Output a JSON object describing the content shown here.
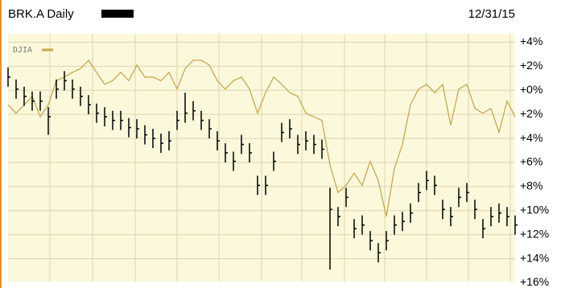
{
  "chart_data": {
    "type": "ohlc",
    "title": "BRK.A Daily",
    "date": "12/31/15",
    "ylim": [
      4.7,
      -15.9
    ],
    "yticks": [
      {
        "value": 4,
        "label": "+4%"
      },
      {
        "value": 2,
        "label": "+2%"
      },
      {
        "value": 0,
        "label": "+0%"
      },
      {
        "value": -2,
        "label": "+2%"
      },
      {
        "value": -4,
        "label": "+4%"
      },
      {
        "value": -6,
        "label": "+6%"
      },
      {
        "value": -8,
        "label": "+8%"
      },
      {
        "value": -10,
        "label": "+10%"
      },
      {
        "value": -12,
        "label": "+12%"
      },
      {
        "value": -14,
        "label": "+14%"
      },
      {
        "value": -16,
        "label": "+16%"
      }
    ],
    "grid": true,
    "bars": {
      "color": "#000000",
      "high": [
        1.9,
        0.9,
        0.3,
        -0.1,
        -0.1,
        -1.4,
        0.9,
        1.6,
        0.9,
        0.3,
        -0.4,
        -1.1,
        -1.4,
        -1.7,
        -1.7,
        -2.3,
        -2.4,
        -2.9,
        -3.2,
        -3.6,
        -3.4,
        -1.7,
        -0.2,
        -0.9,
        -1.7,
        -2.4,
        -3.4,
        -4.4,
        -5.1,
        -3.7,
        -4.4,
        -7.1,
        -7.1,
        -5.1,
        -2.7,
        -2.4,
        -3.7,
        -3.4,
        -3.7,
        -4.1,
        -8.1,
        -9.7,
        -8.1,
        -10.7,
        -10.4,
        -11.7,
        -12.7,
        -11.7,
        -10.4,
        -10.1,
        -9.4,
        -7.7,
        -6.7,
        -7.1,
        -9.1,
        -9.7,
        -8.1,
        -7.7,
        -9.1,
        -10.7,
        -9.7,
        -9.4,
        -9.7,
        -10.4
      ],
      "low": [
        0.3,
        -0.7,
        -1.3,
        -1.7,
        -1.7,
        -3.7,
        -0.7,
        0.0,
        -0.7,
        -1.3,
        -2.0,
        -2.7,
        -3.0,
        -3.3,
        -3.3,
        -3.9,
        -4.0,
        -4.5,
        -4.8,
        -5.2,
        -5.0,
        -3.3,
        -2.7,
        -2.5,
        -3.3,
        -4.0,
        -5.0,
        -6.0,
        -6.7,
        -5.3,
        -6.0,
        -8.7,
        -8.7,
        -6.7,
        -4.3,
        -4.0,
        -5.3,
        -5.0,
        -5.3,
        -5.7,
        -14.9,
        -11.3,
        -9.7,
        -12.3,
        -12.0,
        -13.3,
        -14.3,
        -13.3,
        -12.0,
        -11.7,
        -11.0,
        -9.3,
        -8.3,
        -8.7,
        -10.7,
        -11.3,
        -9.7,
        -9.3,
        -10.7,
        -12.3,
        -11.3,
        -11.0,
        -11.3,
        -12.0
      ],
      "close": [
        1.1,
        0.1,
        -0.5,
        -0.9,
        -0.9,
        -2.2,
        0.1,
        0.8,
        0.1,
        -0.5,
        -1.2,
        -1.9,
        -2.2,
        -2.5,
        -2.5,
        -3.1,
        -3.2,
        -3.7,
        -4.0,
        -4.4,
        -4.2,
        -2.5,
        -1.9,
        -1.7,
        -2.5,
        -3.2,
        -4.2,
        -5.2,
        -5.9,
        -4.5,
        -5.2,
        -7.9,
        -7.9,
        -5.9,
        -3.5,
        -3.2,
        -4.5,
        -4.2,
        -4.5,
        -4.9,
        -9.9,
        -10.5,
        -8.9,
        -11.5,
        -11.2,
        -12.5,
        -13.5,
        -12.5,
        -11.2,
        -10.9,
        -10.2,
        -8.5,
        -7.5,
        -7.9,
        -9.9,
        -10.5,
        -8.9,
        -8.5,
        -9.9,
        -11.5,
        -10.5,
        -10.2,
        -10.5,
        -11.2
      ]
    },
    "series": [
      {
        "name": "DJIA",
        "color": "#c8a850",
        "values": [
          -1.2,
          -1.9,
          -1.2,
          -0.5,
          -2.2,
          -1.2,
          0.8,
          1.1,
          1.5,
          1.8,
          2.5,
          1.5,
          0.5,
          0.8,
          1.5,
          0.8,
          2.1,
          1.1,
          1.1,
          0.8,
          1.5,
          0.1,
          1.8,
          2.5,
          2.5,
          2.1,
          0.8,
          0.1,
          0.8,
          1.1,
          0.1,
          -1.9,
          -0.2,
          1.1,
          0.5,
          -0.2,
          -0.5,
          -1.9,
          -2.2,
          -2.5,
          -6.2,
          -8.5,
          -7.9,
          -6.9,
          -7.9,
          -5.9,
          -7.5,
          -10.5,
          -6.5,
          -4.5,
          -1.2,
          0.1,
          0.5,
          -0.2,
          0.5,
          -2.9,
          0.1,
          0.5,
          -1.5,
          -1.9,
          -1.5,
          -3.5,
          -0.9,
          -2.2
        ]
      }
    ]
  }
}
